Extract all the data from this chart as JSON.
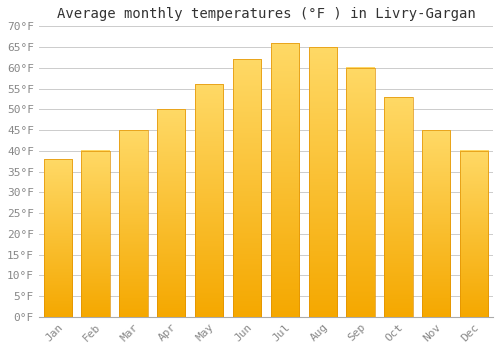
{
  "title": "Average monthly temperatures (°F ) in Livry-Gargan",
  "months": [
    "Jan",
    "Feb",
    "Mar",
    "Apr",
    "May",
    "Jun",
    "Jul",
    "Aug",
    "Sep",
    "Oct",
    "Nov",
    "Dec"
  ],
  "values": [
    38,
    40,
    45,
    50,
    56,
    62,
    66,
    65,
    60,
    53,
    45,
    40
  ],
  "bar_color_top": "#F5A800",
  "bar_color_bottom": "#FFD966",
  "background_color": "#FFFFFF",
  "grid_color": "#CCCCCC",
  "ylim": [
    0,
    70
  ],
  "yticks": [
    0,
    5,
    10,
    15,
    20,
    25,
    30,
    35,
    40,
    45,
    50,
    55,
    60,
    65,
    70
  ],
  "title_fontsize": 10,
  "tick_fontsize": 8,
  "tick_color": "#888888",
  "font_family": "monospace"
}
